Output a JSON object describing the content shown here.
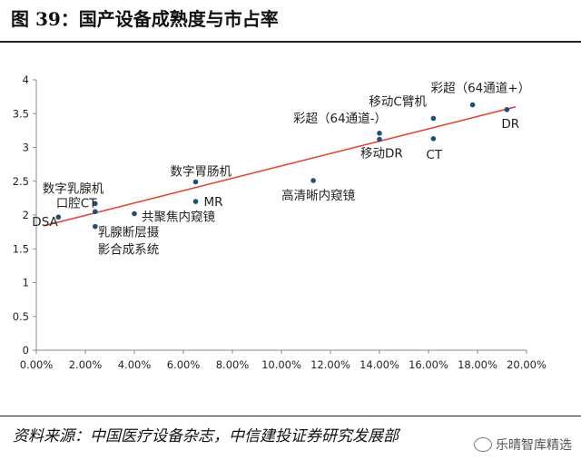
{
  "header": {
    "title": "图  39：国产设备成熟度与市占率"
  },
  "footer": {
    "source": "资料来源：中国医疗设备杂志，中信建投证券研究发展部",
    "watermark": "乐晴智库精选"
  },
  "colors": {
    "point": "#1f4e79",
    "trend": "#e0483c",
    "axis": "#888888",
    "text": "#222222"
  },
  "chart_data": {
    "type": "scatter",
    "title": "",
    "xlabel": "",
    "ylabel": "",
    "xlim": [
      0,
      0.2
    ],
    "ylim": [
      0,
      4
    ],
    "x_ticks": [
      "0.00%",
      "2.00%",
      "4.00%",
      "6.00%",
      "8.00%",
      "10.00%",
      "12.00%",
      "14.00%",
      "16.00%",
      "18.00%",
      "20.00%"
    ],
    "y_ticks": [
      "0",
      "0.5",
      "1",
      "1.5",
      "2",
      "2.5",
      "3",
      "3.5",
      "4"
    ],
    "trendline": {
      "x": [
        0.003,
        0.1955
      ],
      "y": [
        1.84,
        3.6
      ]
    },
    "points": [
      {
        "label": "DSA",
        "x": 0.009,
        "y": 1.97
      },
      {
        "label": "数字乳腺机",
        "x": 0.024,
        "y": 2.17
      },
      {
        "label": "口腔CT",
        "x": 0.024,
        "y": 2.05
      },
      {
        "label": "乳腺断层摄影合成系统",
        "x": 0.024,
        "y": 1.83
      },
      {
        "label": "共聚焦内窥镜",
        "x": 0.04,
        "y": 2.02
      },
      {
        "label": "数字胃肠机",
        "x": 0.065,
        "y": 2.49
      },
      {
        "label": "MR",
        "x": 0.065,
        "y": 2.2
      },
      {
        "label": "高清晰内窥镜",
        "x": 0.113,
        "y": 2.51
      },
      {
        "label": "彩超（64通道-）",
        "x": 0.14,
        "y": 3.21
      },
      {
        "label": "移动DR",
        "x": 0.14,
        "y": 3.12
      },
      {
        "label": "移动C臂机",
        "x": 0.162,
        "y": 3.43
      },
      {
        "label": "CT",
        "x": 0.162,
        "y": 3.13
      },
      {
        "label": "彩超（64通道+）",
        "x": 0.178,
        "y": 3.63
      },
      {
        "label": "DR",
        "x": 0.192,
        "y": 3.56
      }
    ]
  }
}
